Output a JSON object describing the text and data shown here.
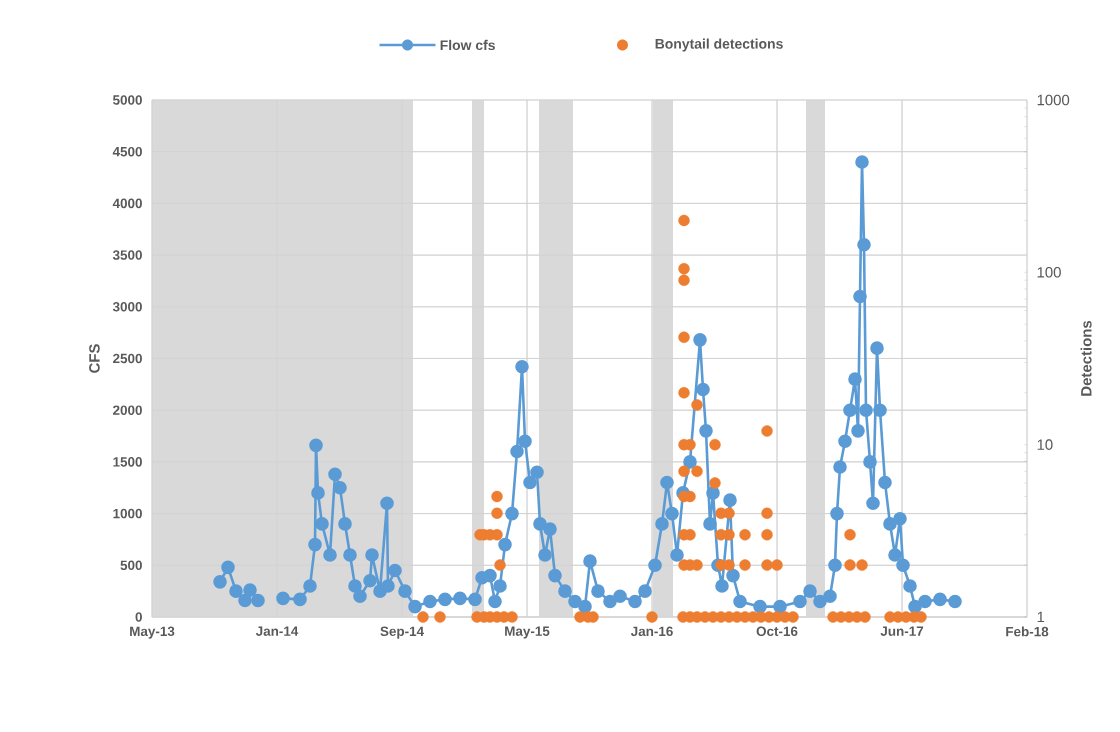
{
  "chart_data": {
    "type": "line",
    "ylabel": "CFS",
    "y2label": "Detections",
    "xlim": [
      "2013-05-01",
      "2018-02-14"
    ],
    "xticks": [
      {
        "value": "2013-05-01",
        "label": "May-13"
      },
      {
        "value": "2014-01-06",
        "label": "Jan-14"
      },
      {
        "value": "2014-09-13",
        "label": "Sep-14"
      },
      {
        "value": "2015-05-21",
        "label": "May-15"
      },
      {
        "value": "2016-01-26",
        "label": "Jan-16"
      },
      {
        "value": "2016-10-02",
        "label": "Oct-16"
      },
      {
        "value": "2017-06-09",
        "label": "Jun-17"
      },
      {
        "value": "2018-02-14",
        "label": "Feb-18"
      }
    ],
    "ylim": [
      0,
      5000
    ],
    "yticks": [
      0,
      500,
      1000,
      1500,
      2000,
      2500,
      3000,
      3500,
      4000,
      4500,
      5000
    ],
    "y2lim": [
      1,
      1000
    ],
    "y2ticks": [
      1,
      10,
      100,
      1000
    ],
    "log": "y2",
    "grid": true,
    "legend": "top",
    "marker": "circle",
    "bands": [
      {
        "axis": "x",
        "from": "2013-05-01",
        "to": "2014-10-05",
        "color": "#d9d9d9"
      },
      {
        "axis": "x",
        "from": "2015-01-31",
        "to": "2015-02-24",
        "color": "#d9d9d9"
      },
      {
        "axis": "x",
        "from": "2015-06-14",
        "to": "2015-08-21",
        "color": "#d9d9d9"
      },
      {
        "axis": "x",
        "from": "2016-01-28",
        "to": "2016-03-08",
        "color": "#d9d9d9"
      },
      {
        "axis": "x",
        "from": "2016-11-29",
        "to": "2017-01-06",
        "color": "#d9d9d9"
      }
    ],
    "series": [
      {
        "name": "Flow cfs",
        "color": "#5b9bd5",
        "x": [
          "2013-09-14",
          "2013-09-30",
          "2013-10-16",
          "2013-11-03",
          "2013-11-13",
          "2013-11-29",
          "2013-12-20",
          "2014-01-18",
          "2014-02-21",
          "2014-03-13",
          "2014-03-23",
          "2014-03-25",
          "2014-03-29",
          "2014-04-06",
          "2014-04-22",
          "2014-05-02",
          "2014-05-12",
          "2014-05-22",
          "2014-06-01",
          "2014-06-11",
          "2014-06-21",
          "2014-07-11",
          "2014-07-15",
          "2014-07-31",
          "2014-08-14",
          "2014-08-16",
          "2014-08-30",
          "2014-09-19",
          "2014-10-09",
          "2014-11-08",
          "2014-12-08",
          "2015-01-07",
          "2015-02-06",
          "2015-02-20",
          "2015-03-08",
          "2015-03-18",
          "2015-03-28",
          "2015-04-07",
          "2015-04-21",
          "2015-05-01",
          "2015-05-11",
          "2015-05-17",
          "2015-05-27",
          "2015-06-10",
          "2015-06-16",
          "2015-06-26",
          "2015-07-06",
          "2015-07-16",
          "2015-08-05",
          "2015-08-25",
          "2015-09-14",
          "2015-09-24",
          "2015-10-10",
          "2015-11-03",
          "2015-11-23",
          "2015-12-23",
          "2016-01-12",
          "2016-02-01",
          "2016-02-15",
          "2016-02-25",
          "2016-03-06",
          "2016-03-16",
          "2016-03-28",
          "2016-04-11",
          "2016-05-01",
          "2016-05-07",
          "2016-05-13",
          "2016-05-21",
          "2016-05-27",
          "2016-06-06",
          "2016-06-14",
          "2016-06-30",
          "2016-07-06",
          "2016-07-20",
          "2016-08-29",
          "2016-10-08",
          "2016-11-17",
          "2016-12-07",
          "2016-12-27",
          "2017-01-16",
          "2017-01-26",
          "2017-01-30",
          "2017-02-05",
          "2017-02-15",
          "2017-02-25",
          "2017-03-07",
          "2017-03-13",
          "2017-03-17",
          "2017-03-21",
          "2017-03-25",
          "2017-03-29",
          "2017-04-06",
          "2017-04-12",
          "2017-04-20",
          "2017-04-26",
          "2017-05-06",
          "2017-05-16",
          "2017-05-26",
          "2017-06-05",
          "2017-06-11",
          "2017-06-25",
          "2017-07-05",
          "2017-07-25",
          "2017-08-24",
          "2017-09-23"
        ],
        "values": [
          340,
          480,
          250,
          160,
          260,
          160,
          null,
          180,
          170,
          300,
          700,
          1660,
          1200,
          900,
          600,
          1380,
          1250,
          900,
          600,
          300,
          200,
          350,
          600,
          250,
          1100,
          300,
          450,
          250,
          100,
          150,
          170,
          180,
          170,
          380,
          400,
          150,
          300,
          700,
          1000,
          1600,
          2420,
          1700,
          1300,
          1400,
          900,
          600,
          850,
          400,
          250,
          150,
          100,
          540,
          250,
          150,
          200,
          150,
          250,
          500,
          900,
          1300,
          1000,
          600,
          1200,
          1500,
          2680,
          2200,
          1800,
          900,
          1200,
          500,
          300,
          1130,
          400,
          150,
          100,
          100,
          150,
          250,
          150,
          200,
          500,
          1000,
          1450,
          1700,
          2000,
          2300,
          1800,
          3100,
          4400,
          3600,
          2000,
          1500,
          1100,
          2600,
          2000,
          1300,
          900,
          600,
          950,
          500,
          300,
          100,
          150,
          170,
          150
        ]
      },
      {
        "name": "Bonytail detections",
        "type": "scatter",
        "axis": "y2",
        "color": "#ed7d31",
        "x": [
          "2014-10-25",
          "2014-11-28",
          "2015-02-10",
          "2015-02-24",
          "2015-03-08",
          "2015-03-22",
          "2015-04-05",
          "2015-04-21",
          "2015-09-04",
          "2015-09-20",
          "2015-09-30",
          "2016-01-26",
          "2016-03-28",
          "2016-04-11",
          "2016-04-25",
          "2016-05-11",
          "2016-05-27",
          "2016-06-12",
          "2016-06-28",
          "2016-07-14",
          "2016-07-30",
          "2016-08-15",
          "2016-08-31",
          "2016-09-16",
          "2016-10-02",
          "2016-10-18",
          "2016-11-03",
          "2017-01-22",
          "2017-02-07",
          "2017-02-23",
          "2017-03-11",
          "2017-03-27",
          "2017-05-16",
          "2017-06-01",
          "2017-06-17",
          "2017-07-03",
          "2017-07-17",
          "2015-02-16",
          "2015-02-24",
          "2015-03-08",
          "2015-03-22",
          "2015-03-22",
          "2015-03-22",
          "2015-03-28",
          "2016-03-30",
          "2016-03-30",
          "2016-03-30",
          "2016-03-30",
          "2016-03-30",
          "2016-03-30",
          "2016-03-30",
          "2016-03-30",
          "2016-03-30",
          "2016-03-30",
          "2016-04-11",
          "2016-04-11",
          "2016-04-11",
          "2016-04-11",
          "2016-04-25",
          "2016-04-25",
          "2016-04-25",
          "2016-05-31",
          "2016-05-31",
          "2016-06-12",
          "2016-06-12",
          "2016-06-12",
          "2016-06-28",
          "2016-06-28",
          "2016-06-28",
          "2016-07-30",
          "2016-07-30",
          "2016-09-12",
          "2016-09-12",
          "2016-09-12",
          "2016-09-12",
          "2016-10-02",
          "2017-02-25",
          "2017-02-25",
          "2017-03-21"
        ],
        "values": [
          1,
          1,
          1,
          1,
          1,
          1,
          1,
          1,
          1,
          1,
          1,
          1,
          1,
          1,
          1,
          1,
          1,
          1,
          1,
          1,
          1,
          1,
          1,
          1,
          1,
          1,
          1,
          1,
          1,
          1,
          1,
          1,
          1,
          1,
          1,
          1,
          1,
          3,
          3,
          3,
          5,
          4,
          3,
          2,
          200,
          105,
          90,
          42,
          20,
          10,
          7,
          5,
          3,
          2,
          10,
          5,
          3,
          2,
          17,
          7,
          2,
          10,
          6,
          3,
          2,
          4,
          4,
          3,
          2,
          3,
          2,
          12,
          4,
          3,
          2,
          2,
          3,
          2,
          2
        ]
      }
    ]
  }
}
